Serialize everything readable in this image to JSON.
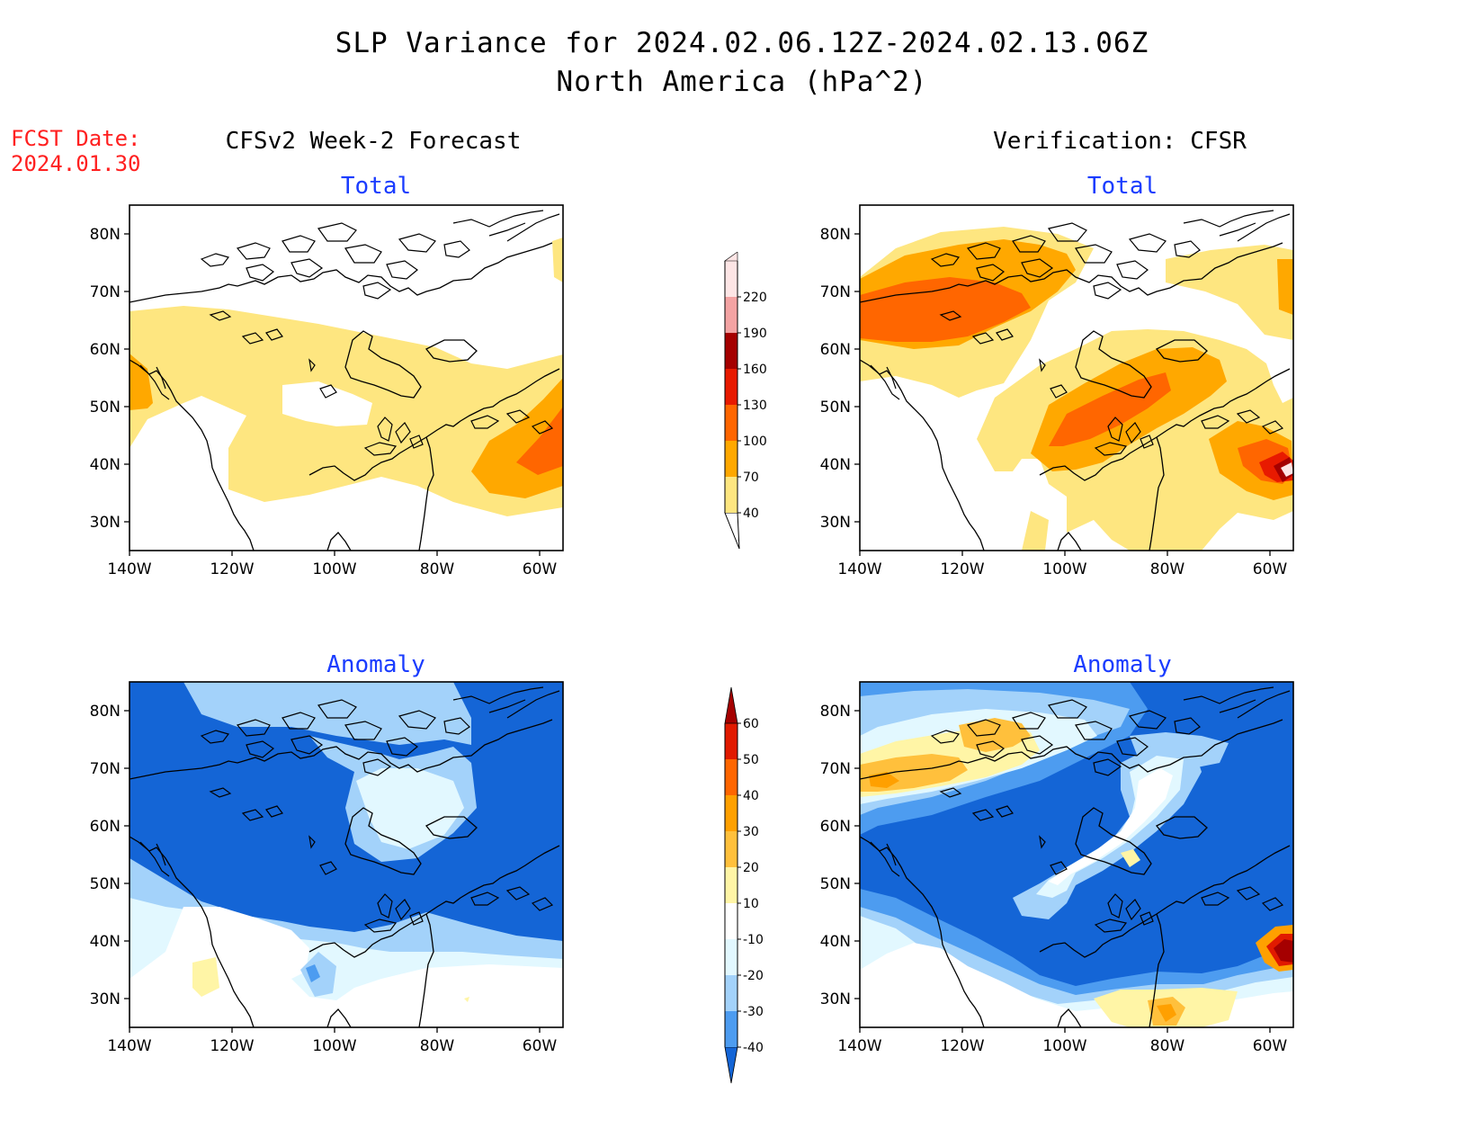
{
  "header": {
    "title": "SLP Variance for 2024.02.06.12Z-2024.02.13.06Z",
    "subtitle": "North America (hPa^2)",
    "fcst_label": "FCST Date:",
    "fcst_date": "2024.01.30"
  },
  "columns": {
    "left": "CFSv2 Week-2 Forecast",
    "right": "Verification: CFSR"
  },
  "panels": {
    "top_left": "Total",
    "top_right": "Total",
    "bottom_left": "Anomaly",
    "bottom_right": "Anomaly"
  },
  "axes": {
    "lat_labels": [
      "80N",
      "70N",
      "60N",
      "50N",
      "40N",
      "30N"
    ],
    "lon_labels": [
      "140W",
      "120W",
      "100W",
      "80W",
      "60W"
    ]
  },
  "total_scale": {
    "labels": [
      "40",
      "70",
      "100",
      "130",
      "160",
      "190",
      "220"
    ],
    "colors": [
      "#fee680",
      "#ffa800",
      "#ff6600",
      "#e81a00",
      "#a50000",
      "#f3a3a3",
      "#fde5e5"
    ]
  },
  "anomaly_scale": {
    "labels": [
      "-40",
      "-30",
      "-20",
      "-10",
      "10",
      "20",
      "30",
      "40",
      "50",
      "60"
    ],
    "colors": [
      "#1465d6",
      "#4d9cf0",
      "#a3d2fa",
      "#e2f8ff",
      "#ffffff",
      "#fff5a6",
      "#ffc03c",
      "#ffa000",
      "#ff6600",
      "#e11a00",
      "#a50000"
    ]
  }
}
